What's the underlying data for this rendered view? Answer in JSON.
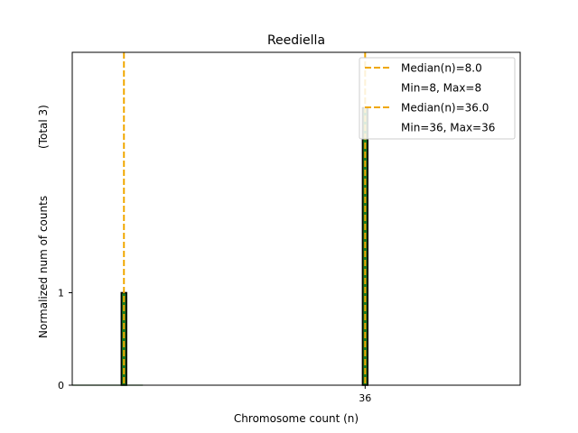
{
  "chart_data": {
    "type": "bar",
    "title": "Reediella",
    "xlabel": "Chromosome count (n)",
    "ylabel": "Normalized num of counts",
    "ylabel_total": "(Total 3)",
    "xlim": [
      2.0,
      54.0
    ],
    "ylim": [
      0,
      3.6
    ],
    "bar_width": 0.6,
    "x_ticks": [
      {
        "value": 36,
        "label": "36"
      }
    ],
    "y_ticks": [
      {
        "value": 0,
        "label": "0"
      },
      {
        "value": 1,
        "label": "1"
      }
    ],
    "baseline_segment": [
      2.0,
      10.2
    ],
    "bars": [
      {
        "x": 8,
        "value": 1
      },
      {
        "x": 36,
        "value": 3
      }
    ],
    "median_lines": [
      {
        "x": 8.0,
        "label": "Median(n)=8.0",
        "range_label": "Min=8, Max=8"
      },
      {
        "x": 36.0,
        "label": "Median(n)=36.0",
        "range_label": "Min=36, Max=36"
      }
    ],
    "colors": {
      "bar_fill": "#1e7a1e",
      "bar_edge": "#000000",
      "median_line": "#f0a800",
      "axes": "#000000",
      "legend_border": "#cccccc"
    },
    "legend_position": "top-right",
    "grid": false
  }
}
